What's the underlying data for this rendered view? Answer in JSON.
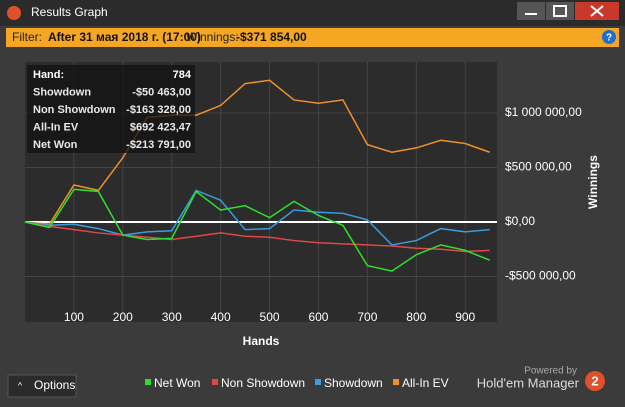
{
  "window": {
    "title": "Results Graph",
    "filter_label": "Filter:",
    "filter_text": "After 31 мая 2018 г. (17:00)",
    "winnings_label": "Winnings:",
    "winnings_value": "-$371 854,00",
    "help": "?"
  },
  "summary": {
    "rows": [
      [
        "Hand:",
        "784"
      ],
      [
        "Showdown",
        "-$50 463,00"
      ],
      [
        "Non Showdown",
        "-$163 328,00"
      ],
      [
        "All-In EV",
        "$692 423,47"
      ],
      [
        "Net Won",
        "-$213 791,00"
      ]
    ]
  },
  "chart_data": {
    "type": "line",
    "xlabel": "Hands",
    "ylabel": "Winnings",
    "x": [
      0,
      50,
      100,
      150,
      200,
      250,
      300,
      350,
      400,
      450,
      500,
      550,
      600,
      650,
      700,
      750,
      800,
      850,
      900,
      950
    ],
    "series": [
      {
        "name": "Net Won",
        "color": "#2ee02e",
        "values": [
          0,
          -50000,
          300000,
          280000,
          -120000,
          -160000,
          -150000,
          280000,
          110000,
          150000,
          40000,
          190000,
          60000,
          -30000,
          -400000,
          -450000,
          -300000,
          -210000,
          -260000,
          -350000
        ]
      },
      {
        "name": "Non Showdown",
        "color": "#e04848",
        "values": [
          0,
          -40000,
          -70000,
          -100000,
          -120000,
          -140000,
          -160000,
          -130000,
          -100000,
          -130000,
          -140000,
          -170000,
          -190000,
          -200000,
          -210000,
          -220000,
          -240000,
          -250000,
          -270000,
          -260000
        ]
      },
      {
        "name": "Showdown",
        "color": "#3a9be0",
        "values": [
          0,
          -30000,
          -20000,
          -60000,
          -120000,
          -90000,
          -80000,
          290000,
          200000,
          -70000,
          -60000,
          110000,
          90000,
          80000,
          20000,
          -210000,
          -170000,
          -60000,
          -90000,
          -70000
        ]
      },
      {
        "name": "All-In EV",
        "color": "#f0902a",
        "values": [
          0,
          -20000,
          340000,
          290000,
          590000,
          960000,
          980000,
          980000,
          1070000,
          1270000,
          1300000,
          1120000,
          1090000,
          1120000,
          710000,
          640000,
          680000,
          750000,
          720000,
          640000
        ]
      }
    ],
    "xlim": [
      0,
      965
    ],
    "ylim": [
      -917000,
      1468000
    ],
    "xticks": [
      100,
      200,
      300,
      400,
      500,
      600,
      700,
      800,
      900
    ],
    "yticks": [
      {
        "value": 1000000,
        "label": "$1 000 000,00"
      },
      {
        "value": 500000,
        "label": "$500 000,00"
      },
      {
        "value": 0,
        "label": "$0,00"
      },
      {
        "value": -500000,
        "label": "-$500 000,00"
      }
    ],
    "grid": true
  },
  "footer": {
    "options": "Options",
    "powered": "Powered by",
    "brand": "Hold'em Manager",
    "logo": "2"
  }
}
